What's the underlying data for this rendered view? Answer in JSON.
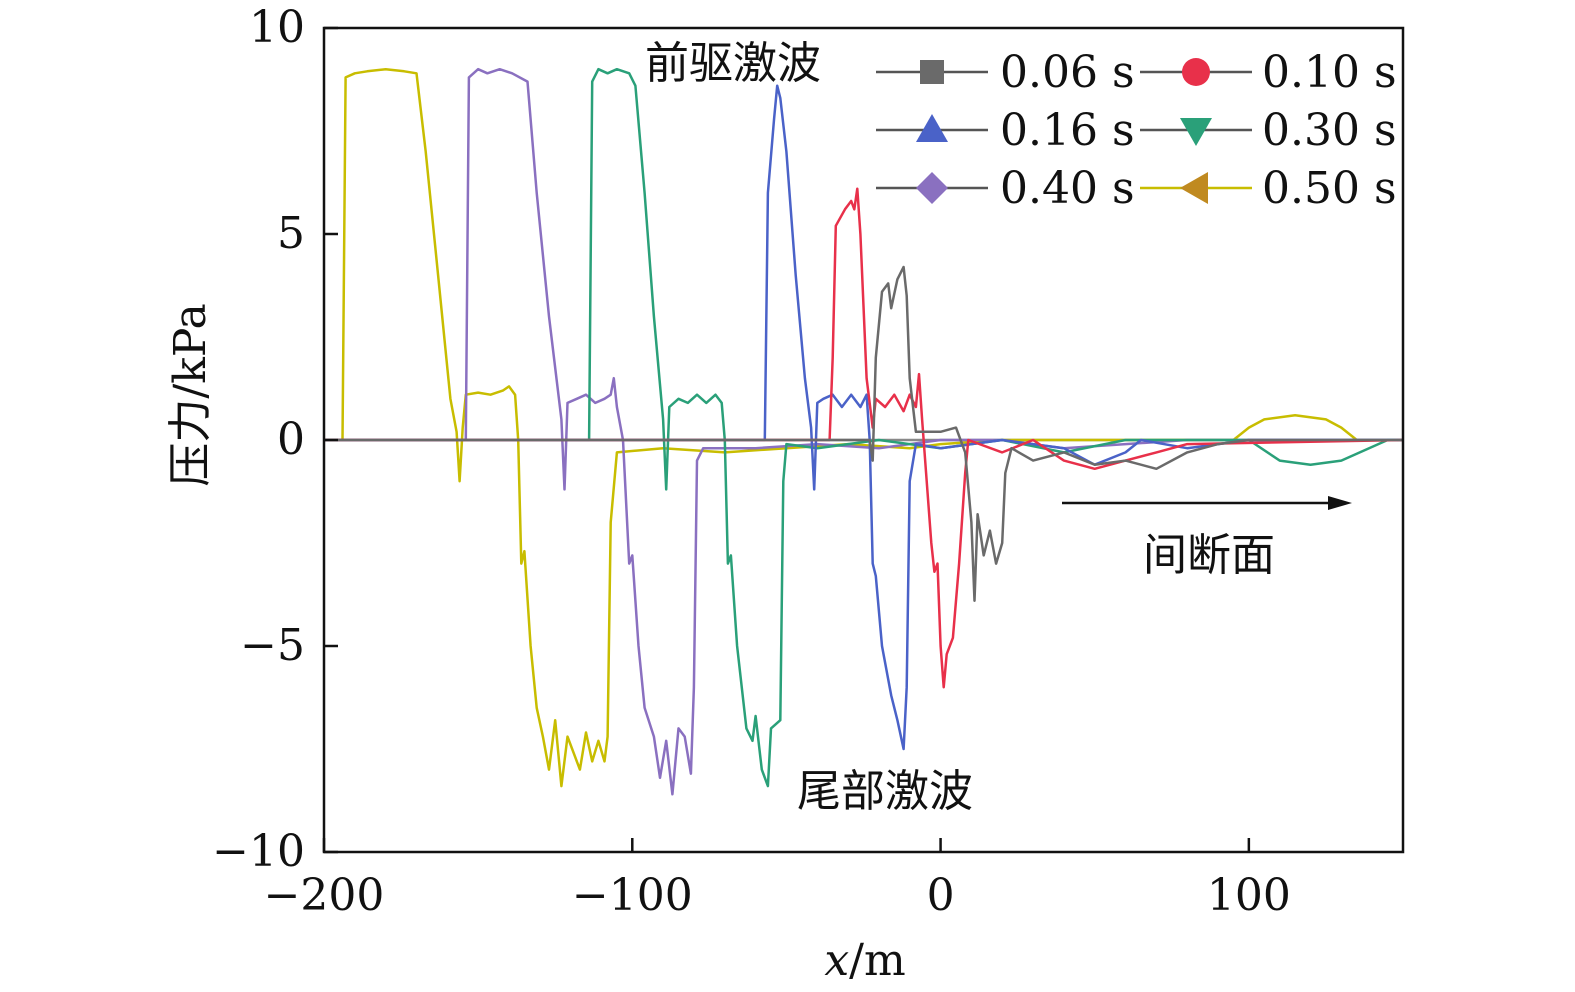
{
  "chart_data": {
    "type": "line",
    "xlabel_var": "x",
    "xlabel_unit": "/m",
    "ylabel": "压力/kPa",
    "xlim": [
      -200,
      150
    ],
    "ylim": [
      -10,
      10
    ],
    "xticks": [
      -200,
      -100,
      0,
      100
    ],
    "xtick_labels": [
      "−200",
      "−100",
      "0",
      "100"
    ],
    "yticks": [
      10,
      5,
      0,
      -5,
      -10
    ],
    "ytick_labels": [
      "10",
      "5",
      "0",
      "−5",
      "−10"
    ],
    "legend_position": "top-right",
    "annotations": {
      "precursor": "前驱激波",
      "tail": "尾部激波",
      "discontinuity": "间断面"
    },
    "series": [
      {
        "name": "0.06 s",
        "color": "#6a6a6a",
        "marker": "square",
        "points": [
          [
            -200,
            0
          ],
          [
            -23,
            0
          ],
          [
            -22,
            -0.5
          ],
          [
            -21,
            2
          ],
          [
            -19,
            3.6
          ],
          [
            -17,
            3.8
          ],
          [
            -16,
            3.2
          ],
          [
            -14,
            3.9
          ],
          [
            -12,
            4.2
          ],
          [
            -11,
            3.5
          ],
          [
            -10,
            1.5
          ],
          [
            -8,
            0.2
          ],
          [
            -5,
            0.2
          ],
          [
            0,
            0.2
          ],
          [
            5,
            0.3
          ],
          [
            8,
            -0.3
          ],
          [
            10,
            -2
          ],
          [
            11,
            -3.9
          ],
          [
            12,
            -1.8
          ],
          [
            14,
            -2.8
          ],
          [
            16,
            -2.2
          ],
          [
            18,
            -3
          ],
          [
            20,
            -2.5
          ],
          [
            21,
            -0.8
          ],
          [
            23,
            -0.2
          ],
          [
            30,
            -0.5
          ],
          [
            40,
            -0.3
          ],
          [
            50,
            -0.6
          ],
          [
            60,
            -0.5
          ],
          [
            70,
            -0.7
          ],
          [
            80,
            -0.3
          ],
          [
            90,
            -0.1
          ],
          [
            100,
            0
          ],
          [
            150,
            0
          ]
        ]
      },
      {
        "name": "0.10 s",
        "color": "#e8304a",
        "marker": "circle",
        "points": [
          [
            -200,
            0
          ],
          [
            -36,
            0
          ],
          [
            -35,
            2
          ],
          [
            -34,
            5.2
          ],
          [
            -31,
            5.6
          ],
          [
            -29,
            5.8
          ],
          [
            -28,
            5.6
          ],
          [
            -27,
            6.1
          ],
          [
            -26,
            5
          ],
          [
            -24,
            1.5
          ],
          [
            -22,
            0.3
          ],
          [
            -21,
            1
          ],
          [
            -18,
            0.8
          ],
          [
            -15,
            1.1
          ],
          [
            -12,
            0.7
          ],
          [
            -10,
            1.1
          ],
          [
            -8,
            0.8
          ],
          [
            -7,
            1.6
          ],
          [
            -6,
            0.5
          ],
          [
            -3,
            -2.5
          ],
          [
            -2,
            -3.2
          ],
          [
            -1,
            -3
          ],
          [
            0,
            -5
          ],
          [
            1,
            -6
          ],
          [
            2,
            -5.2
          ],
          [
            4,
            -4.8
          ],
          [
            6,
            -3
          ],
          [
            8,
            -0.8
          ],
          [
            9,
            0
          ],
          [
            20,
            -0.3
          ],
          [
            30,
            0
          ],
          [
            40,
            -0.5
          ],
          [
            50,
            -0.7
          ],
          [
            60,
            -0.5
          ],
          [
            70,
            -0.3
          ],
          [
            80,
            -0.1
          ],
          [
            150,
            0
          ]
        ]
      },
      {
        "name": "0.16 s",
        "color": "#4a62c8",
        "marker": "triangle-up",
        "points": [
          [
            -200,
            0
          ],
          [
            -57,
            0
          ],
          [
            -56,
            6
          ],
          [
            -54,
            7.8
          ],
          [
            -53,
            8.6
          ],
          [
            -52,
            8.3
          ],
          [
            -50,
            7
          ],
          [
            -47,
            4
          ],
          [
            -44,
            1.5
          ],
          [
            -42,
            0.3
          ],
          [
            -41,
            -1.2
          ],
          [
            -40,
            0.9
          ],
          [
            -38,
            1
          ],
          [
            -35,
            1.1
          ],
          [
            -32,
            0.8
          ],
          [
            -29,
            1.1
          ],
          [
            -26,
            0.8
          ],
          [
            -24,
            1.1
          ],
          [
            -23,
            0
          ],
          [
            -22,
            -3
          ],
          [
            -21,
            -3.3
          ],
          [
            -19,
            -5
          ],
          [
            -16,
            -6.2
          ],
          [
            -14,
            -6.8
          ],
          [
            -12,
            -7.5
          ],
          [
            -11,
            -6
          ],
          [
            -10,
            -1
          ],
          [
            -8,
            -0.1
          ],
          [
            0,
            -0.2
          ],
          [
            20,
            0
          ],
          [
            40,
            -0.2
          ],
          [
            50,
            -0.6
          ],
          [
            60,
            -0.3
          ],
          [
            65,
            0
          ],
          [
            80,
            -0.2
          ],
          [
            100,
            0
          ],
          [
            150,
            0
          ]
        ]
      },
      {
        "name": "0.30 s",
        "color": "#2aa079",
        "marker": "triangle-down",
        "points": [
          [
            -200,
            0
          ],
          [
            -114,
            0
          ],
          [
            -113,
            8.7
          ],
          [
            -111,
            9
          ],
          [
            -108,
            8.9
          ],
          [
            -105,
            9
          ],
          [
            -101,
            8.9
          ],
          [
            -99,
            8.6
          ],
          [
            -96,
            6
          ],
          [
            -93,
            3
          ],
          [
            -90,
            0.5
          ],
          [
            -89,
            -1.2
          ],
          [
            -88,
            0.8
          ],
          [
            -85,
            1
          ],
          [
            -82,
            0.9
          ],
          [
            -79,
            1.1
          ],
          [
            -76,
            0.9
          ],
          [
            -73,
            1.1
          ],
          [
            -71,
            0.9
          ],
          [
            -70,
            0
          ],
          [
            -69,
            -3
          ],
          [
            -68,
            -2.8
          ],
          [
            -66,
            -5
          ],
          [
            -63,
            -7
          ],
          [
            -61,
            -7.3
          ],
          [
            -60,
            -6.7
          ],
          [
            -58,
            -8
          ],
          [
            -56,
            -8.4
          ],
          [
            -55,
            -7
          ],
          [
            -52,
            -6.8
          ],
          [
            -51,
            -1
          ],
          [
            -50,
            -0.1
          ],
          [
            -40,
            -0.2
          ],
          [
            -20,
            0
          ],
          [
            0,
            -0.2
          ],
          [
            20,
            0
          ],
          [
            40,
            -0.3
          ],
          [
            60,
            0
          ],
          [
            80,
            0
          ],
          [
            100,
            0
          ],
          [
            110,
            -0.5
          ],
          [
            120,
            -0.6
          ],
          [
            130,
            -0.5
          ],
          [
            145,
            0
          ],
          [
            150,
            0
          ]
        ]
      },
      {
        "name": "0.40 s",
        "color": "#8a70c0",
        "marker": "diamond",
        "points": [
          [
            -200,
            0
          ],
          [
            -154,
            0
          ],
          [
            -153,
            8.8
          ],
          [
            -150,
            9
          ],
          [
            -147,
            8.9
          ],
          [
            -143,
            9
          ],
          [
            -139,
            8.9
          ],
          [
            -134,
            8.7
          ],
          [
            -131,
            6
          ],
          [
            -127,
            3
          ],
          [
            -123,
            0.5
          ],
          [
            -122,
            -1.2
          ],
          [
            -121,
            0.9
          ],
          [
            -118,
            1
          ],
          [
            -115,
            1.1
          ],
          [
            -112,
            0.9
          ],
          [
            -109,
            1
          ],
          [
            -107,
            1.1
          ],
          [
            -106,
            1.5
          ],
          [
            -105,
            0.8
          ],
          [
            -103,
            0
          ],
          [
            -101,
            -3
          ],
          [
            -100,
            -2.8
          ],
          [
            -98,
            -5
          ],
          [
            -96,
            -6.5
          ],
          [
            -93,
            -7.2
          ],
          [
            -91,
            -8.2
          ],
          [
            -89,
            -7.3
          ],
          [
            -87,
            -8.6
          ],
          [
            -85,
            -7
          ],
          [
            -83,
            -7.2
          ],
          [
            -81,
            -8.1
          ],
          [
            -80,
            -6
          ],
          [
            -79,
            -0.5
          ],
          [
            -77,
            -0.2
          ],
          [
            -60,
            -0.2
          ],
          [
            -40,
            -0.1
          ],
          [
            -20,
            -0.2
          ],
          [
            0,
            0
          ],
          [
            20,
            0
          ],
          [
            40,
            -0.2
          ],
          [
            60,
            -0.1
          ],
          [
            80,
            0
          ],
          [
            150,
            0
          ]
        ]
      },
      {
        "name": "0.50 s",
        "color": "#c8bd00",
        "marker": "triangle-left",
        "points": [
          [
            -200,
            0
          ],
          [
            -194,
            0
          ],
          [
            -193,
            8.8
          ],
          [
            -190,
            8.9
          ],
          [
            -186,
            8.95
          ],
          [
            -180,
            9
          ],
          [
            -174,
            8.95
          ],
          [
            -170,
            8.9
          ],
          [
            -167,
            7
          ],
          [
            -163,
            4
          ],
          [
            -159,
            1
          ],
          [
            -157,
            0.2
          ],
          [
            -156,
            -1
          ],
          [
            -155,
            0.3
          ],
          [
            -154,
            1.1
          ],
          [
            -150,
            1.15
          ],
          [
            -146,
            1.1
          ],
          [
            -142,
            1.2
          ],
          [
            -140,
            1.3
          ],
          [
            -138,
            1.1
          ],
          [
            -137,
            0
          ],
          [
            -136,
            -3
          ],
          [
            -135,
            -2.7
          ],
          [
            -133,
            -5
          ],
          [
            -131,
            -6.5
          ],
          [
            -129,
            -7.2
          ],
          [
            -127,
            -8
          ],
          [
            -125,
            -6.8
          ],
          [
            -123,
            -8.4
          ],
          [
            -121,
            -7.2
          ],
          [
            -119,
            -7.6
          ],
          [
            -117,
            -8
          ],
          [
            -115,
            -7.1
          ],
          [
            -113,
            -7.8
          ],
          [
            -111,
            -7.3
          ],
          [
            -109,
            -7.8
          ],
          [
            -108,
            -7.2
          ],
          [
            -107,
            -2
          ],
          [
            -105,
            -0.3
          ],
          [
            -90,
            -0.2
          ],
          [
            -70,
            -0.3
          ],
          [
            -50,
            -0.2
          ],
          [
            -30,
            -0.1
          ],
          [
            -10,
            -0.2
          ],
          [
            0,
            -0.1
          ],
          [
            20,
            0
          ],
          [
            40,
            0
          ],
          [
            60,
            0
          ],
          [
            80,
            0
          ],
          [
            95,
            0
          ],
          [
            100,
            0.3
          ],
          [
            105,
            0.5
          ],
          [
            115,
            0.6
          ],
          [
            125,
            0.5
          ],
          [
            130,
            0.3
          ],
          [
            135,
            0
          ],
          [
            150,
            0
          ]
        ]
      }
    ]
  }
}
